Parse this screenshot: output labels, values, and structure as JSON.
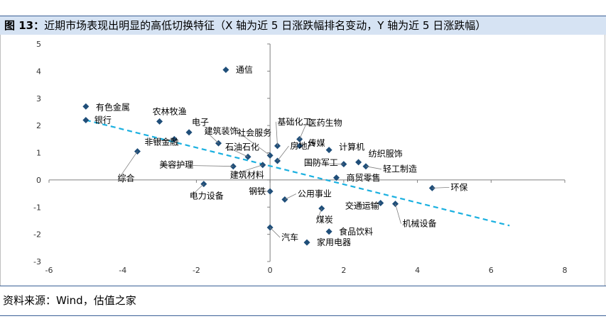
{
  "header": {
    "figure_label": "图 13：",
    "figure_title": "近期市场表现出明显的高低切换特征（X 轴为近 5 日涨跌幅排名变动，Y 轴为近 5 日涨跌幅）"
  },
  "footer": {
    "source": "资料来源：Wind，估值之家"
  },
  "chart_data": {
    "type": "scatter",
    "xlim": [
      -6,
      8
    ],
    "ylim": [
      -3,
      5
    ],
    "x_ticks": [
      -6,
      -4,
      -2,
      0,
      2,
      4,
      6,
      8
    ],
    "y_ticks": [
      -3,
      -2,
      -1,
      0,
      1,
      2,
      3,
      4,
      5
    ],
    "grid": false,
    "marker_color": "#1f4e79",
    "trendline_color": "#1ab0e0",
    "trendline": {
      "x": [
        -5,
        6.5
      ],
      "y": [
        2.2,
        -1.68
      ],
      "style": "dashed"
    },
    "points": [
      {
        "name": "通信",
        "x": -1.2,
        "y": 4.05
      },
      {
        "name": "有色金属",
        "x": -5,
        "y": 2.7
      },
      {
        "name": "银行",
        "x": -5,
        "y": 2.2
      },
      {
        "name": "农林牧渔",
        "x": -3,
        "y": 2.15
      },
      {
        "name": "电子",
        "x": -2.2,
        "y": 1.75
      },
      {
        "name": "非银金融",
        "x": -2.6,
        "y": 1.5
      },
      {
        "name": "综合",
        "x": -3.6,
        "y": 1.05
      },
      {
        "name": "建筑装饰",
        "x": -1.4,
        "y": 1.35
      },
      {
        "name": "石油石化",
        "x": -0.6,
        "y": 0.85
      },
      {
        "name": "美容护理",
        "x": -1,
        "y": 0.5
      },
      {
        "name": "建筑材料",
        "x": -0.2,
        "y": 0.55
      },
      {
        "name": "社会服务",
        "x": 0,
        "y": 0.9
      },
      {
        "name": "基础化工",
        "x": 0.2,
        "y": 1.25
      },
      {
        "name": "医药生物",
        "x": 0.8,
        "y": 1.5
      },
      {
        "name": "传媒",
        "x": 0.8,
        "y": 1.25
      },
      {
        "name": "房地产",
        "x": 0.2,
        "y": 0.7
      },
      {
        "name": "计算机",
        "x": 1.6,
        "y": 1.1
      },
      {
        "name": "纺织服饰",
        "x": 2.4,
        "y": 0.65
      },
      {
        "name": "国防军工",
        "x": 2,
        "y": 0.58
      },
      {
        "name": "轻工制造",
        "x": 2.6,
        "y": 0.5
      },
      {
        "name": "商贸零售",
        "x": 1.8,
        "y": 0.08
      },
      {
        "name": "电力设备",
        "x": -1.8,
        "y": -0.15
      },
      {
        "name": "钢铁",
        "x": 0,
        "y": -0.42
      },
      {
        "name": "公用事业",
        "x": 0.4,
        "y": -0.72
      },
      {
        "name": "环保",
        "x": 4.4,
        "y": -0.3
      },
      {
        "name": "交通运输",
        "x": 3,
        "y": -0.85
      },
      {
        "name": "机械设备",
        "x": 3.4,
        "y": -0.88
      },
      {
        "name": "煤炭",
        "x": 1.4,
        "y": -1.05
      },
      {
        "name": "汽车",
        "x": 0,
        "y": -1.75
      },
      {
        "name": "食品饮料",
        "x": 1.6,
        "y": -1.9
      },
      {
        "name": "家用电器",
        "x": 1,
        "y": -2.3
      }
    ]
  }
}
